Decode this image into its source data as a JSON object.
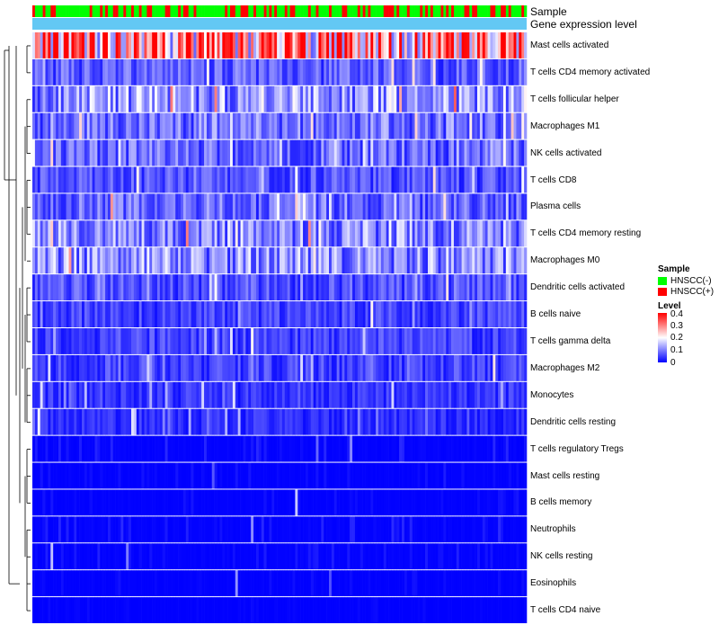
{
  "chart_data": {
    "type": "heatmap",
    "annotation_tracks": [
      "Sample",
      "Gene expression level"
    ],
    "rows": [
      "Mast cells activated",
      "T cells CD4 memory activated",
      "T cells follicular helper",
      "Macrophages M1",
      "NK cells activated",
      "T cells CD8",
      "Plasma cells",
      "T cells CD4 memory resting",
      "Macrophages M0",
      "Dendritic cells activated",
      "B cells naive",
      "T cells gamma delta",
      "Macrophages M2",
      "Monocytes",
      "Dendritic cells resting",
      "T cells regulatory  Tregs",
      "Mast cells resting",
      "B cells memory",
      "Neutrophils",
      "NK cells resting",
      "Eosinophils",
      "T cells CD4 naive"
    ],
    "row_mean_levels": [
      0.28,
      0.07,
      0.12,
      0.09,
      0.08,
      0.06,
      0.08,
      0.11,
      0.11,
      0.06,
      0.05,
      0.05,
      0.05,
      0.04,
      0.035,
      0.02,
      0.01,
      0.01,
      0.02,
      0.015,
      0.008,
      0.005
    ],
    "n_samples": 190,
    "legend": {
      "sample": {
        "title": "Sample",
        "items": [
          {
            "label": "HNSCC(-)",
            "color": "#00ff00"
          },
          {
            "label": "HNSCC(+)",
            "color": "#ff0000"
          }
        ]
      },
      "level": {
        "title": "Level",
        "ticks": [
          "0.4",
          "0.3",
          "0.2",
          "0.1",
          "0"
        ],
        "range": [
          0,
          0.4
        ],
        "colors": [
          "#0000ff",
          "#ffffff",
          "#ff0000"
        ]
      }
    },
    "gene_expression_color": "#63c8f4"
  }
}
